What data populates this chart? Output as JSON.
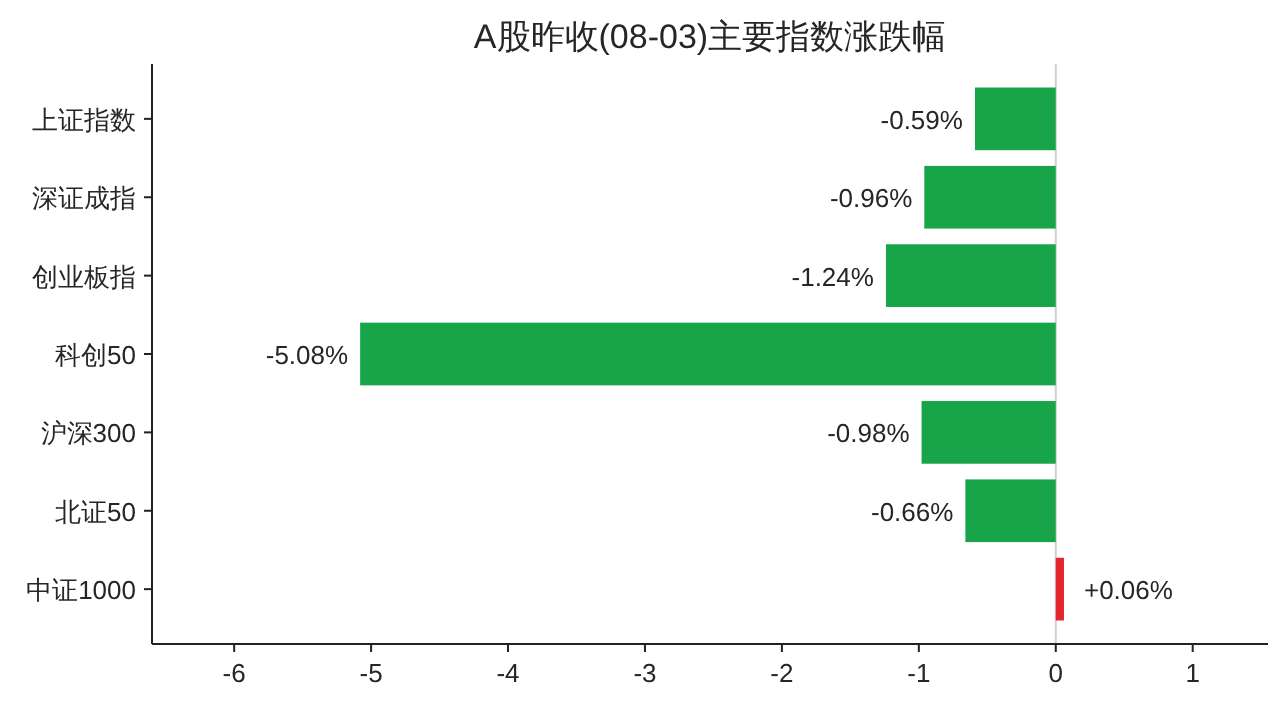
{
  "chart_data": {
    "type": "bar",
    "orientation": "horizontal",
    "title": "A股昨收(08-03)主要指数涨跌幅",
    "categories": [
      "上证指数",
      "深证成指",
      "创业板指",
      "科创50",
      "沪深300",
      "北证50",
      "中证1000"
    ],
    "values": [
      -0.59,
      -0.96,
      -1.24,
      -5.08,
      -0.98,
      -0.66,
      0.06
    ],
    "colors": [
      "#18a54a",
      "#18a54a",
      "#18a54a",
      "#18a54a",
      "#18a54a",
      "#18a54a",
      "#e3262b"
    ],
    "value_labels": [
      "-0.59%",
      "-0.96%",
      "-1.24%",
      "-5.08%",
      "-0.98%",
      "-0.66%",
      "+0.06%"
    ],
    "xlim": [
      -6.6,
      1.55
    ],
    "xticks": [
      -6,
      -5,
      -4,
      -3,
      -2,
      -1,
      0,
      1
    ],
    "ref_lines": [
      {
        "axis": "x",
        "value": 0,
        "color": "#d0d0d0"
      }
    ],
    "grid": false
  }
}
